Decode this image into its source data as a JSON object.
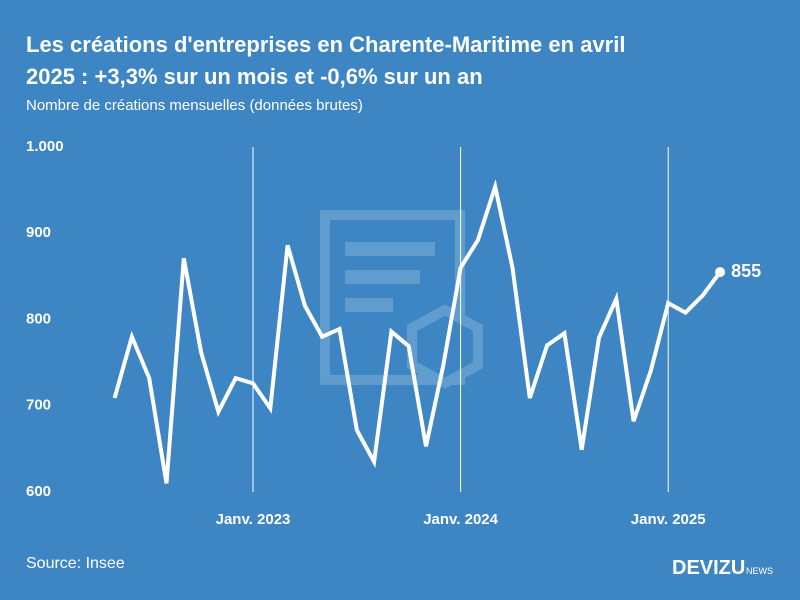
{
  "chart_data": {
    "type": "line",
    "title": "Les créations d'entreprises en Charente-Maritime en avril",
    "title_line2": "2025 : +3,3% sur un mois et -0,6% sur un an",
    "subtitle": "Nombre de créations mensuelles (données brutes)",
    "source": "Source: Insee",
    "brand": "DEVIZU",
    "brand_suffix": "NEWS",
    "categories": [
      null,
      null,
      null,
      null,
      null,
      null,
      null,
      null,
      "Janv. 2023",
      null,
      null,
      null,
      null,
      null,
      null,
      null,
      null,
      null,
      null,
      null,
      "Janv. 2024",
      null,
      null,
      null,
      null,
      null,
      null,
      null,
      null,
      null,
      null,
      null,
      "Janv. 2025",
      null,
      null,
      null
    ],
    "series": [
      {
        "name": "Créations",
        "color": "#ffffff",
        "values": [
          709,
          780,
          732,
          610,
          871,
          762,
          693,
          732,
          726,
          697,
          886,
          816,
          780,
          789,
          672,
          635,
          786,
          769,
          653,
          747,
          860,
          892,
          954,
          860,
          709,
          770,
          784,
          649,
          779,
          824,
          682,
          741,
          819,
          808,
          828,
          855
        ]
      }
    ],
    "ylim": [
      600,
      1000
    ],
    "yticks": [
      600,
      700,
      800,
      900,
      {
        "value": 1000,
        "label": "1.000"
      }
    ],
    "xgrid": true
  }
}
